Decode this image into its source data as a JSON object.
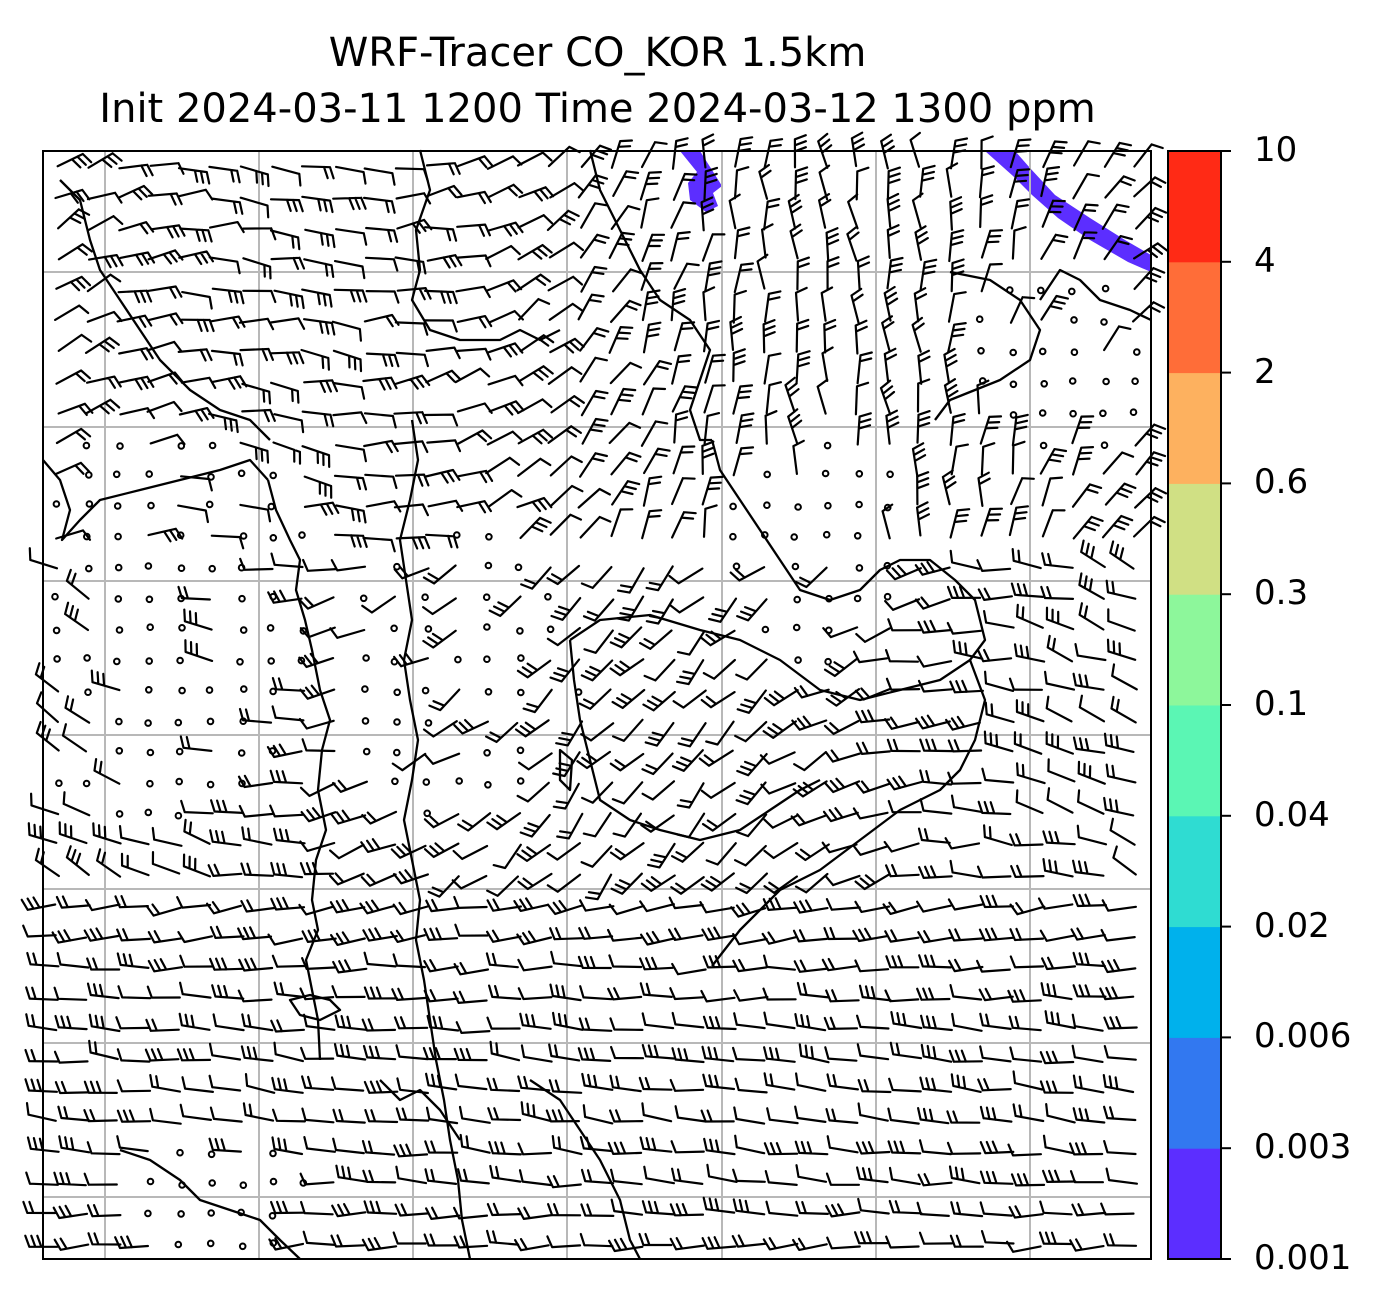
{
  "title_line1": "WRF-Tracer CO_KOR 1.5km",
  "title_line2": "Init 2024-03-11 1200 Time 2024-03-12 1300 ppm",
  "colorbar": {
    "levels": [
      "0.001",
      "0.003",
      "0.006",
      "0.02",
      "0.04",
      "0.1",
      "0.3",
      "0.6",
      "2",
      "4",
      "10"
    ],
    "colors": [
      "#5c2eff",
      "#3278f0",
      "#00b1ec",
      "#2fdcd2",
      "#5bf6b4",
      "#8df79b",
      "#d0e084",
      "#fdb15f",
      "#ff6d38",
      "#ff2a15"
    ]
  },
  "plume_color": "#5c2eff",
  "map": {
    "gridlines": true,
    "coastline_color": "#000000",
    "wind_barbs": true
  }
}
